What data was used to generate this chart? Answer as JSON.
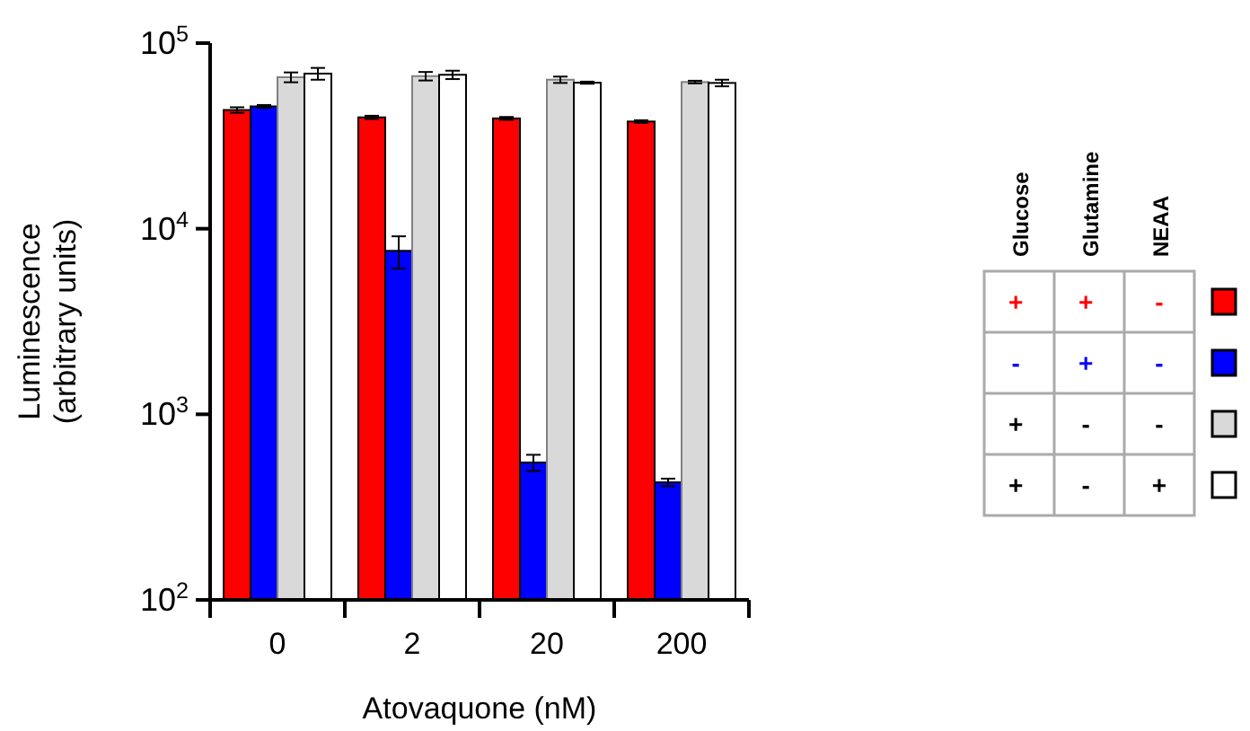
{
  "chart_data": {
    "type": "bar",
    "xlabel": "Atovaquone (nM)",
    "ylabel": "Luminescence\n(arbitrary units)",
    "categories": [
      "0",
      "2",
      "20",
      "200"
    ],
    "log": "y",
    "ylim": [
      100,
      100000
    ],
    "yticks": [
      {
        "value": 100,
        "label": "10$^{2}$"
      },
      {
        "value": 1000,
        "label": "10$^{3}$"
      },
      {
        "value": 10000,
        "label": "10$^{4}$"
      },
      {
        "value": 100000,
        "label": "10$^{5}$"
      }
    ],
    "annotations": [
      "Glucose",
      "Glutamine",
      "NEAA"
    ],
    "series": [
      {
        "name": "+ + -",
        "color": "#ff0000",
        "values": [
          43600,
          39800,
          39300,
          37800
        ],
        "errors": [
          1500,
          800,
          700,
          600
        ]
      },
      {
        "name": "- + -",
        "color": "#0000ff",
        "values": [
          45600,
          7600,
          550,
          430
        ],
        "errors": [
          800,
          1500,
          55,
          20
        ]
      },
      {
        "name": "+ - -",
        "color": "#d9d9d9",
        "values": [
          65500,
          66400,
          63500,
          61700
        ],
        "errors": [
          4000,
          3500,
          2500,
          1000
        ]
      },
      {
        "name": "+ - +",
        "color": "#ffffff",
        "values": [
          68500,
          67500,
          61200,
          61000
        ],
        "errors": [
          5000,
          3500,
          800,
          2500
        ]
      }
    ]
  }
}
